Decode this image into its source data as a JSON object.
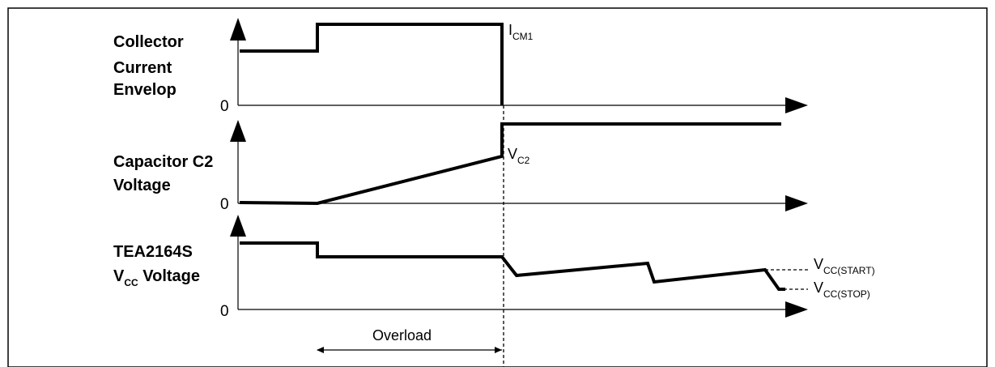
{
  "figure": {
    "panels": [
      {
        "id": "collector",
        "label_lines": [
          "Collector",
          "Current",
          "Envelop"
        ],
        "zero_label": "0"
      },
      {
        "id": "capacitor",
        "label_lines": [
          "Capacitor C2",
          "Voltage"
        ],
        "zero_label": "0"
      },
      {
        "id": "vcc",
        "label_line1": "TEA2164S",
        "label_line2_main": "V",
        "label_line2_sub": "CC",
        "label_line2_rest": " Voltage",
        "zero_label": "0"
      }
    ],
    "annotations": {
      "icm1": {
        "main": "I",
        "sub": "CM1"
      },
      "vc2": {
        "main": "V",
        "sub": "C2"
      },
      "vcc_start": {
        "main": "V",
        "sub": "CC(START)"
      },
      "vcc_stop": {
        "main": "V",
        "sub": "CC(STOP)"
      },
      "overload": "Overload"
    },
    "colors": {
      "line": "#000000",
      "border": "#000000",
      "background": "#ffffff"
    }
  }
}
